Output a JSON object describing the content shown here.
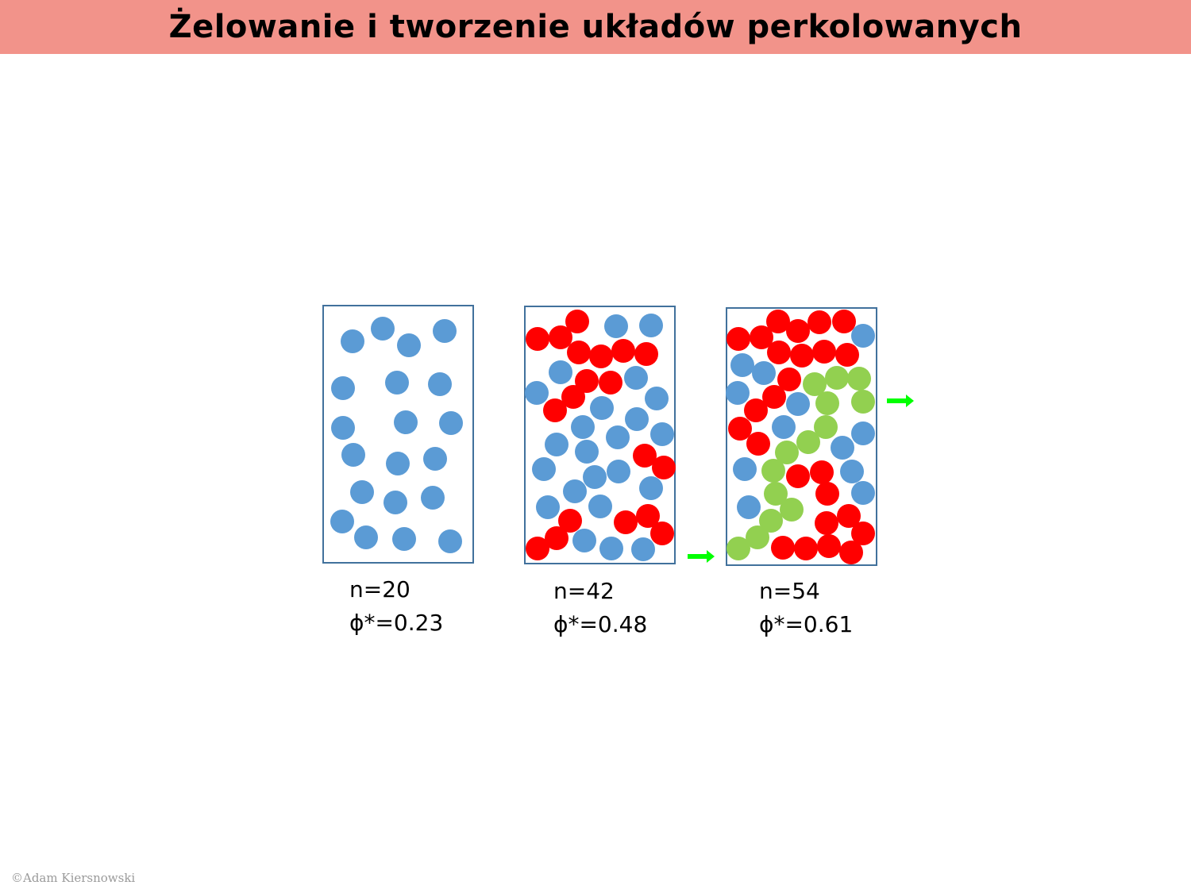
{
  "title": "Żelowanie i tworzenie układów perkolowanych",
  "copyright": "©Adam Kiersnowski",
  "colors": {
    "title_bg": "#f2938a",
    "box_border": "#41719c",
    "blue": "#5b9bd5",
    "red": "#ff0000",
    "green": "#92d050",
    "arrow": "#00ff00"
  },
  "panels": [
    {
      "n_label": "n=20",
      "phi_label": "ϕ*=0.23"
    },
    {
      "n_label": "n=42",
      "phi_label": "ϕ*=0.48"
    },
    {
      "n_label": "n=54",
      "phi_label": "ϕ*=0.61"
    }
  ]
}
